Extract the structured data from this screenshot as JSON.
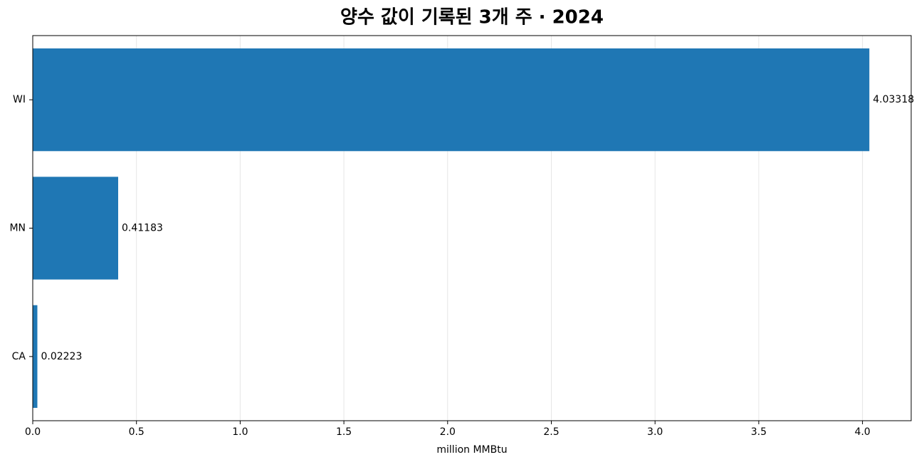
{
  "chart_data": {
    "type": "bar",
    "orientation": "horizontal",
    "title": "양수 값이 기록된 3개 주 · 2024",
    "categories": [
      "WI",
      "MN",
      "CA"
    ],
    "values": [
      4.03318,
      0.41183,
      0.02223
    ],
    "color": "#1f77b4",
    "xlabel": "million MMBtu",
    "xlim": [
      0,
      4.2348
    ],
    "xticks": [
      {
        "value": 0,
        "label": "0.0"
      },
      0.5,
      {
        "value": 1,
        "label": "1.0"
      },
      1.5,
      {
        "value": 2,
        "label": "2.0"
      },
      2.5,
      {
        "value": 3,
        "label": "3.0"
      },
      3.5,
      {
        "value": 4,
        "label": "4.0"
      }
    ],
    "grid": true
  }
}
